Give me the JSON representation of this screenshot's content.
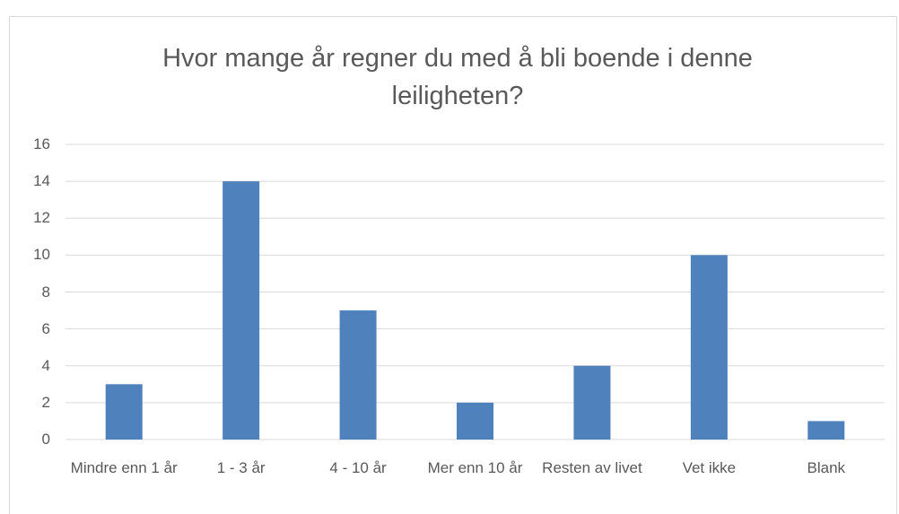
{
  "chart_data": {
    "type": "bar",
    "title": "Hvor mange år regner du med å bli boende i denne leiligheten?",
    "categories": [
      "Mindre enn 1 år",
      "1 - 3 år",
      "4 - 10 år",
      "Mer enn 10 år",
      "Resten av livet",
      "Vet ikke",
      "Blank"
    ],
    "values": [
      3,
      14,
      7,
      2,
      4,
      10,
      1
    ],
    "color": "#4f81bd",
    "ylim": [
      0,
      16
    ],
    "yticks": [
      0,
      2,
      4,
      6,
      8,
      10,
      12,
      14,
      16
    ],
    "grid": true
  }
}
